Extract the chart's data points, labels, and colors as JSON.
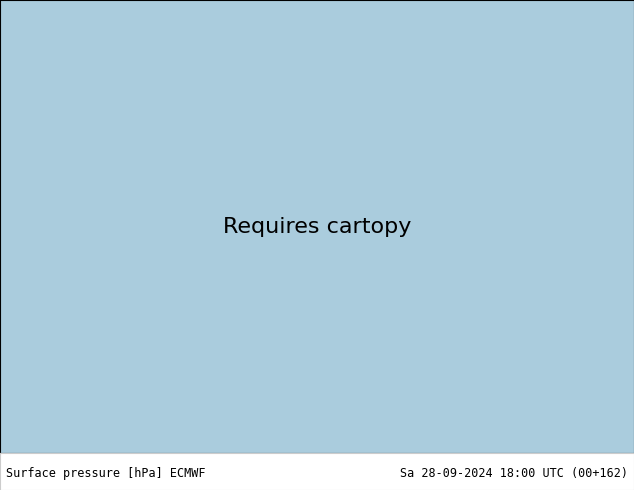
{
  "title_left": "Surface pressure [hPa] ECMWF",
  "title_right": "Sa 28-09-2024 18:00 UTC (00+162)",
  "figure_width": 6.34,
  "figure_height": 4.9,
  "dpi": 100,
  "footer_fontsize": 8.5,
  "footer_bg": "#ffffff",
  "lon_min": 27,
  "lon_max": 155,
  "lat_min": -12,
  "lat_max": 65,
  "blue_color": "#0000cc",
  "red_color": "#cc0000",
  "black_color": "#000000",
  "isobar_lw": 1.1,
  "label_fontsize": 6.5
}
